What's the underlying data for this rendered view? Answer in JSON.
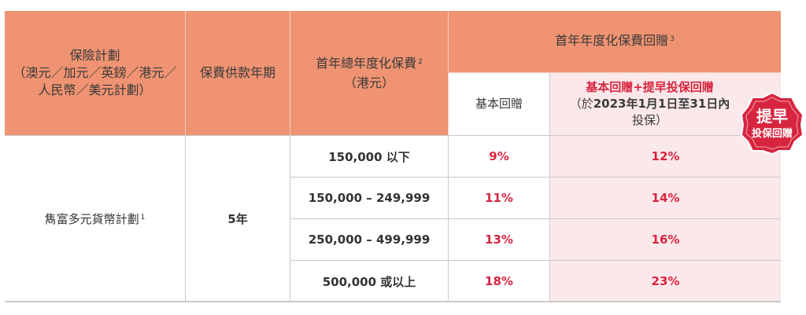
{
  "headers": {
    "plan": [
      "保險計劃",
      "（澳元／加元／英鎊／港元／",
      "人民幣／美元計劃）"
    ],
    "payment_term": "保費供款年期",
    "premium": [
      "首年總年度化保費",
      "2",
      "（港元）"
    ],
    "rebate_group": [
      "首年年度化保費回贈",
      "3"
    ],
    "basic_rebate": "基本回贈",
    "combined_rebate": "基本回贈+提早投保回贈",
    "combined_rebate_note_1": "（於",
    "combined_rebate_note_2": "2023年1月1日至31日內",
    "combined_rebate_note_3": "投保）"
  },
  "plan_name": "雋富多元貨幣計劃",
  "plan_name_sup": "1",
  "term": "5年",
  "rows": [
    {
      "premium": "150,000 以下",
      "basic": "9%",
      "combined": "12%"
    },
    {
      "premium": "150,000 – 249,999",
      "basic": "11%",
      "combined": "14%"
    },
    {
      "premium": "250,000 – 499,999",
      "basic": "13%",
      "combined": "16%"
    },
    {
      "premium": "500,000 或以上",
      "basic": "18%",
      "combined": "23%"
    }
  ],
  "badge": {
    "line1": "提早",
    "line2": "投保回贈"
  },
  "colors": {
    "header": "#ef9372",
    "pink": "#fbe8ea",
    "accent": "#d8253f",
    "badge": "#d8253f"
  }
}
